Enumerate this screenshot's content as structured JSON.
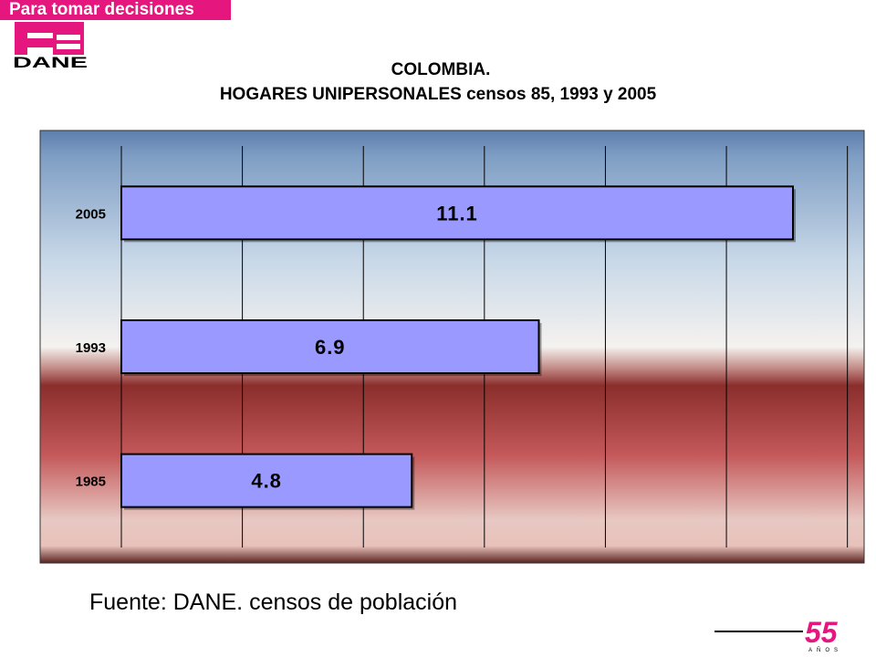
{
  "header": {
    "tagline": "Para tomar decisiones",
    "logo_text": "DANE",
    "brand_color": "#e5167e"
  },
  "chart_data": {
    "type": "bar",
    "orientation": "horizontal",
    "title_line1": "COLOMBIA.",
    "title_line2": "HOGARES UNIPERSONALES censos 85, 1993 y 2005",
    "categories": [
      "2005",
      "1993",
      "1985"
    ],
    "values": [
      11.1,
      6.9,
      4.8
    ],
    "data_labels": [
      "11.1",
      "6.9",
      "4.8"
    ],
    "xlim": [
      0,
      12
    ],
    "grid": "vertical",
    "bar_color": "#9999ff"
  },
  "footer": {
    "source": "Fuente:  DANE. censos de población",
    "anniversary_number": "55",
    "anniversary_word": "AÑOS"
  }
}
